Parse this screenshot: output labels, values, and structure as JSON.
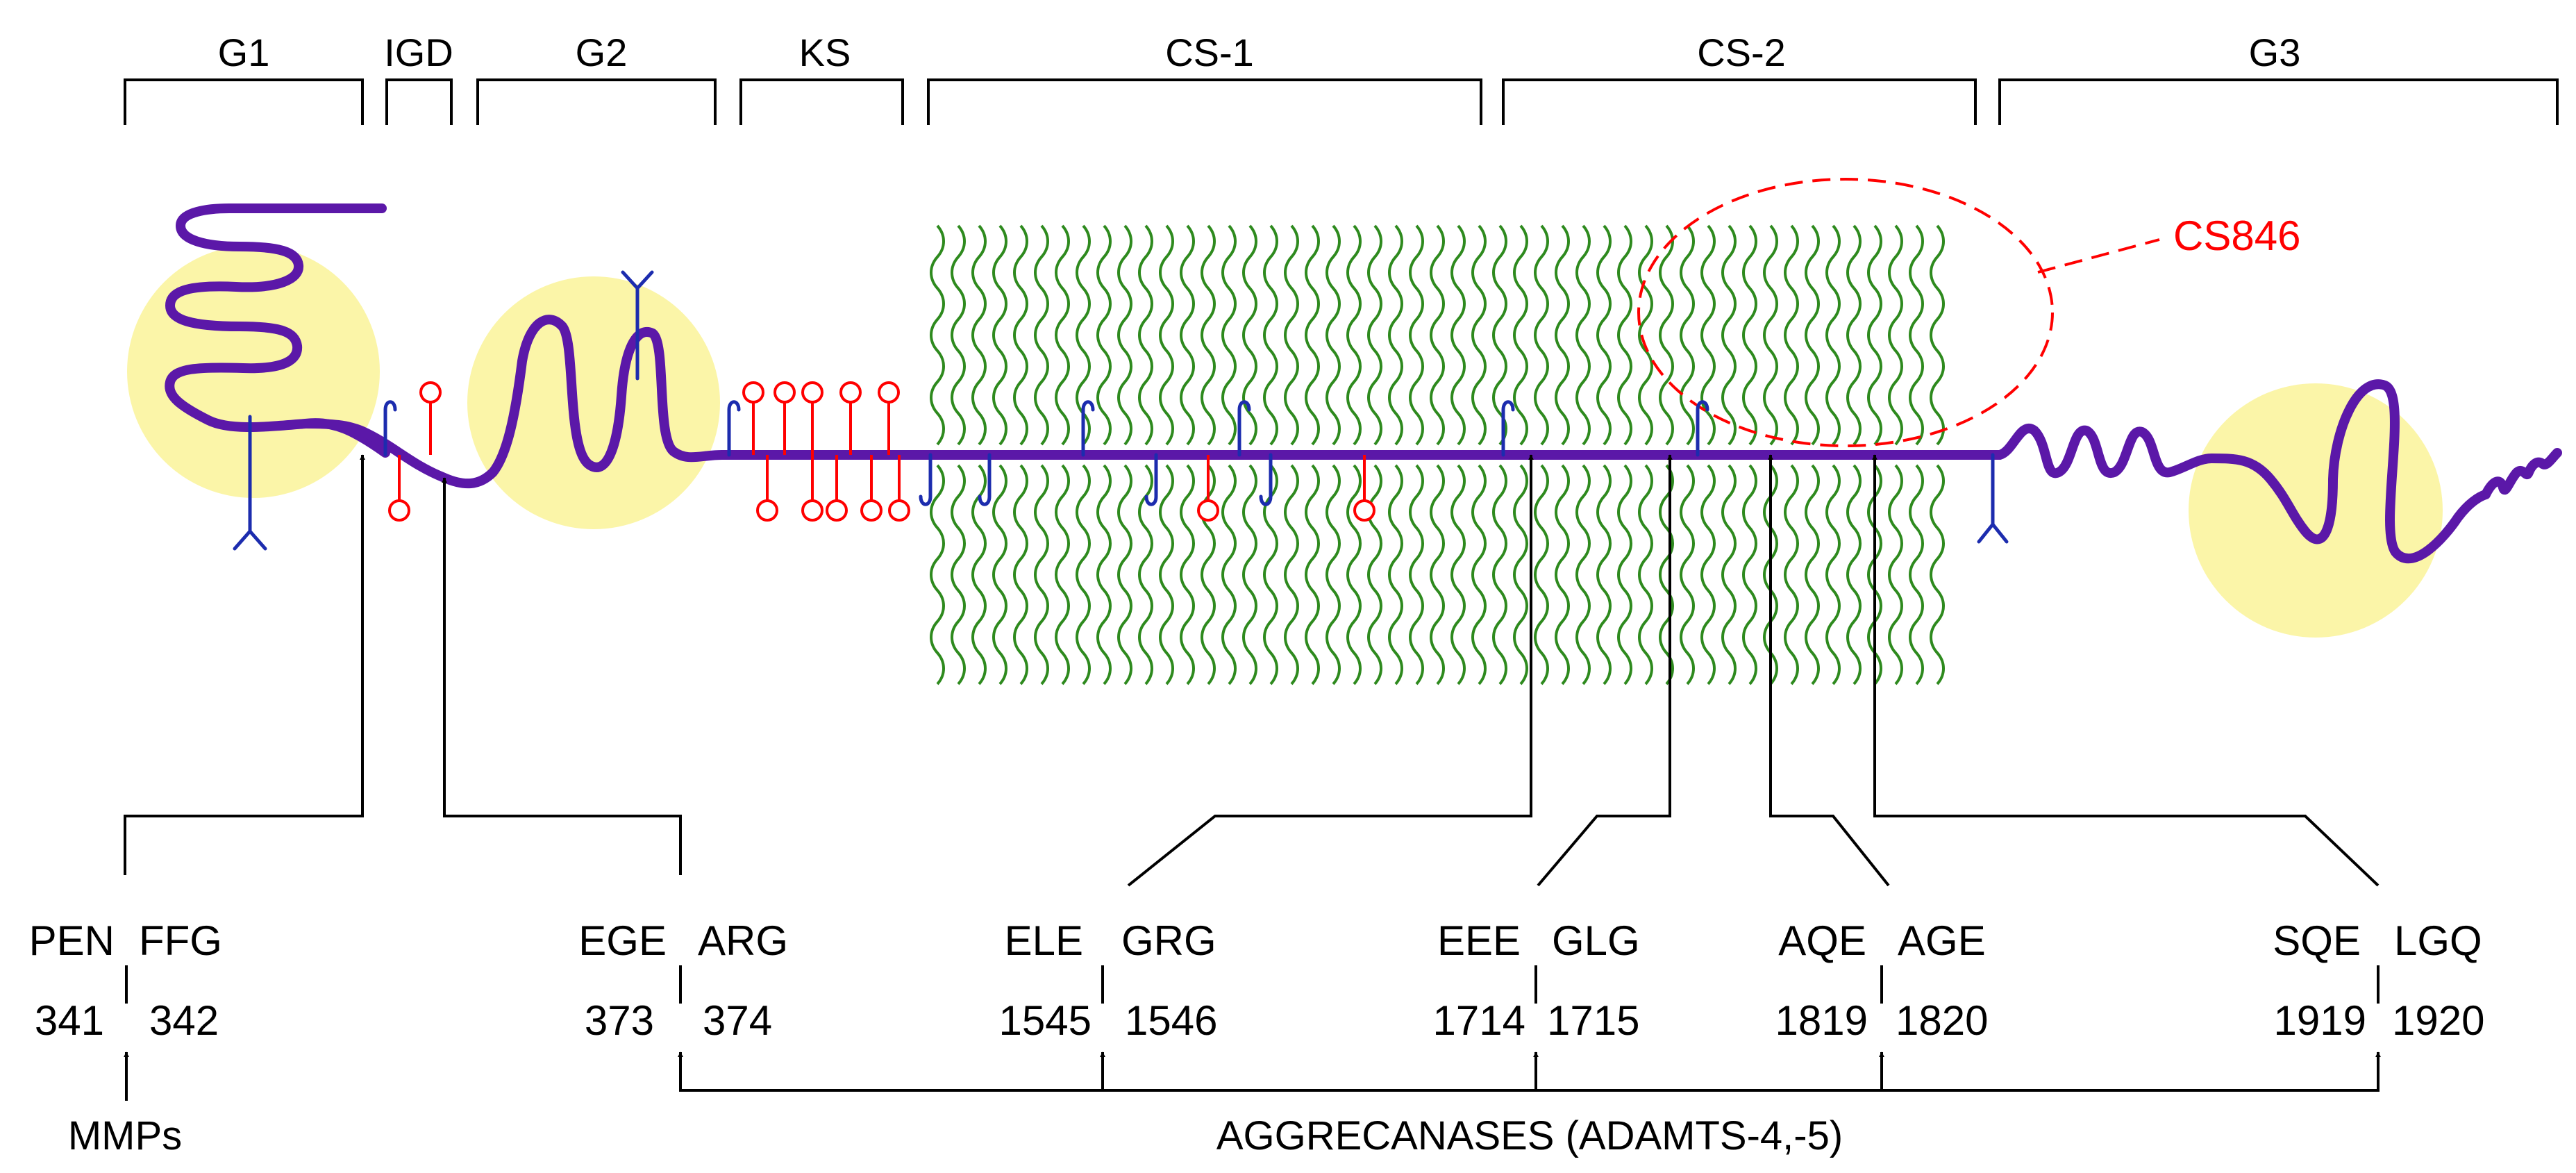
{
  "domains": {
    "g1": "G1",
    "igd": "IGD",
    "g2": "G2",
    "ks": "KS",
    "cs1": "CS-1",
    "cs2": "CS-2",
    "g3": "G3"
  },
  "epitope_label": "CS846",
  "cleavage_sites": [
    {
      "left": "PEN",
      "right": "FFG",
      "left_num": "341",
      "right_num": "342"
    },
    {
      "left": "EGE",
      "right": "ARG",
      "left_num": "373",
      "right_num": "374"
    },
    {
      "left": "ELE",
      "right": "GRG",
      "left_num": "1545",
      "right_num": "1546"
    },
    {
      "left": "EEE",
      "right": "GLG",
      "left_num": "1714",
      "right_num": "1715"
    },
    {
      "left": "AQE",
      "right": "AGE",
      "left_num": "1819",
      "right_num": "1820"
    },
    {
      "left": "SQE",
      "right": "LGQ",
      "left_num": "1919",
      "right_num": "1920"
    }
  ],
  "enzymes": {
    "mmps": "MMPs",
    "aggrecanases": "AGGRECANASES (ADAMTS-4,-5)"
  },
  "colors": {
    "core": "#5b18a8",
    "globe": "#fbf5a8",
    "cs_chain": "#2e8a1e",
    "ks_chain": "#ff0000",
    "n_glycan": "#1c2cae",
    "epitope": "#ff0000",
    "lines": "#000000"
  }
}
